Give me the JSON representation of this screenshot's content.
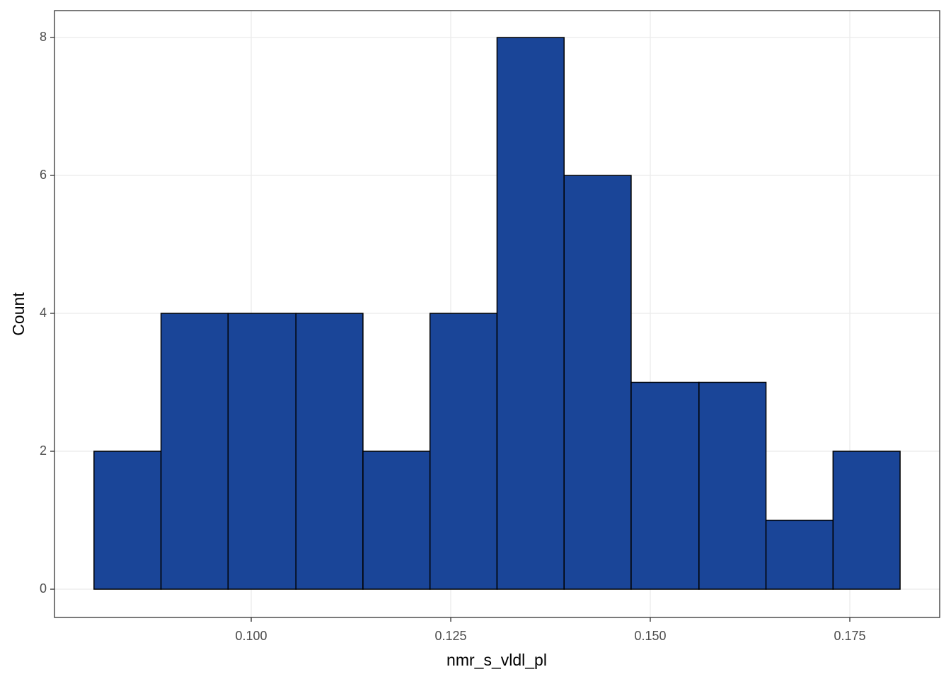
{
  "chart_data": {
    "type": "histogram",
    "xlabel": "nmr_s_vldl_pl",
    "ylabel": "Count",
    "bins": [
      0.0803,
      0.0887,
      0.0971,
      0.1056,
      0.114,
      0.1224,
      0.1308,
      0.1392,
      0.1476,
      0.1561,
      0.1645,
      0.1729,
      0.1813
    ],
    "counts": [
      2,
      4,
      4,
      4,
      2,
      4,
      8,
      6,
      3,
      3,
      1,
      2
    ],
    "color": "#1a4598",
    "edgecolor": "#000000",
    "xlim": [
      0.07535,
      0.18626
    ],
    "ylim": [
      -0.41,
      8.39
    ],
    "xticks": [
      {
        "value": 0.1,
        "label": "0.100"
      },
      {
        "value": 0.125,
        "label": "0.125"
      },
      {
        "value": 0.15,
        "label": "0.150"
      },
      {
        "value": 0.175,
        "label": "0.175"
      }
    ],
    "yticks": [
      0,
      2,
      4,
      6,
      8
    ],
    "grid": true
  }
}
